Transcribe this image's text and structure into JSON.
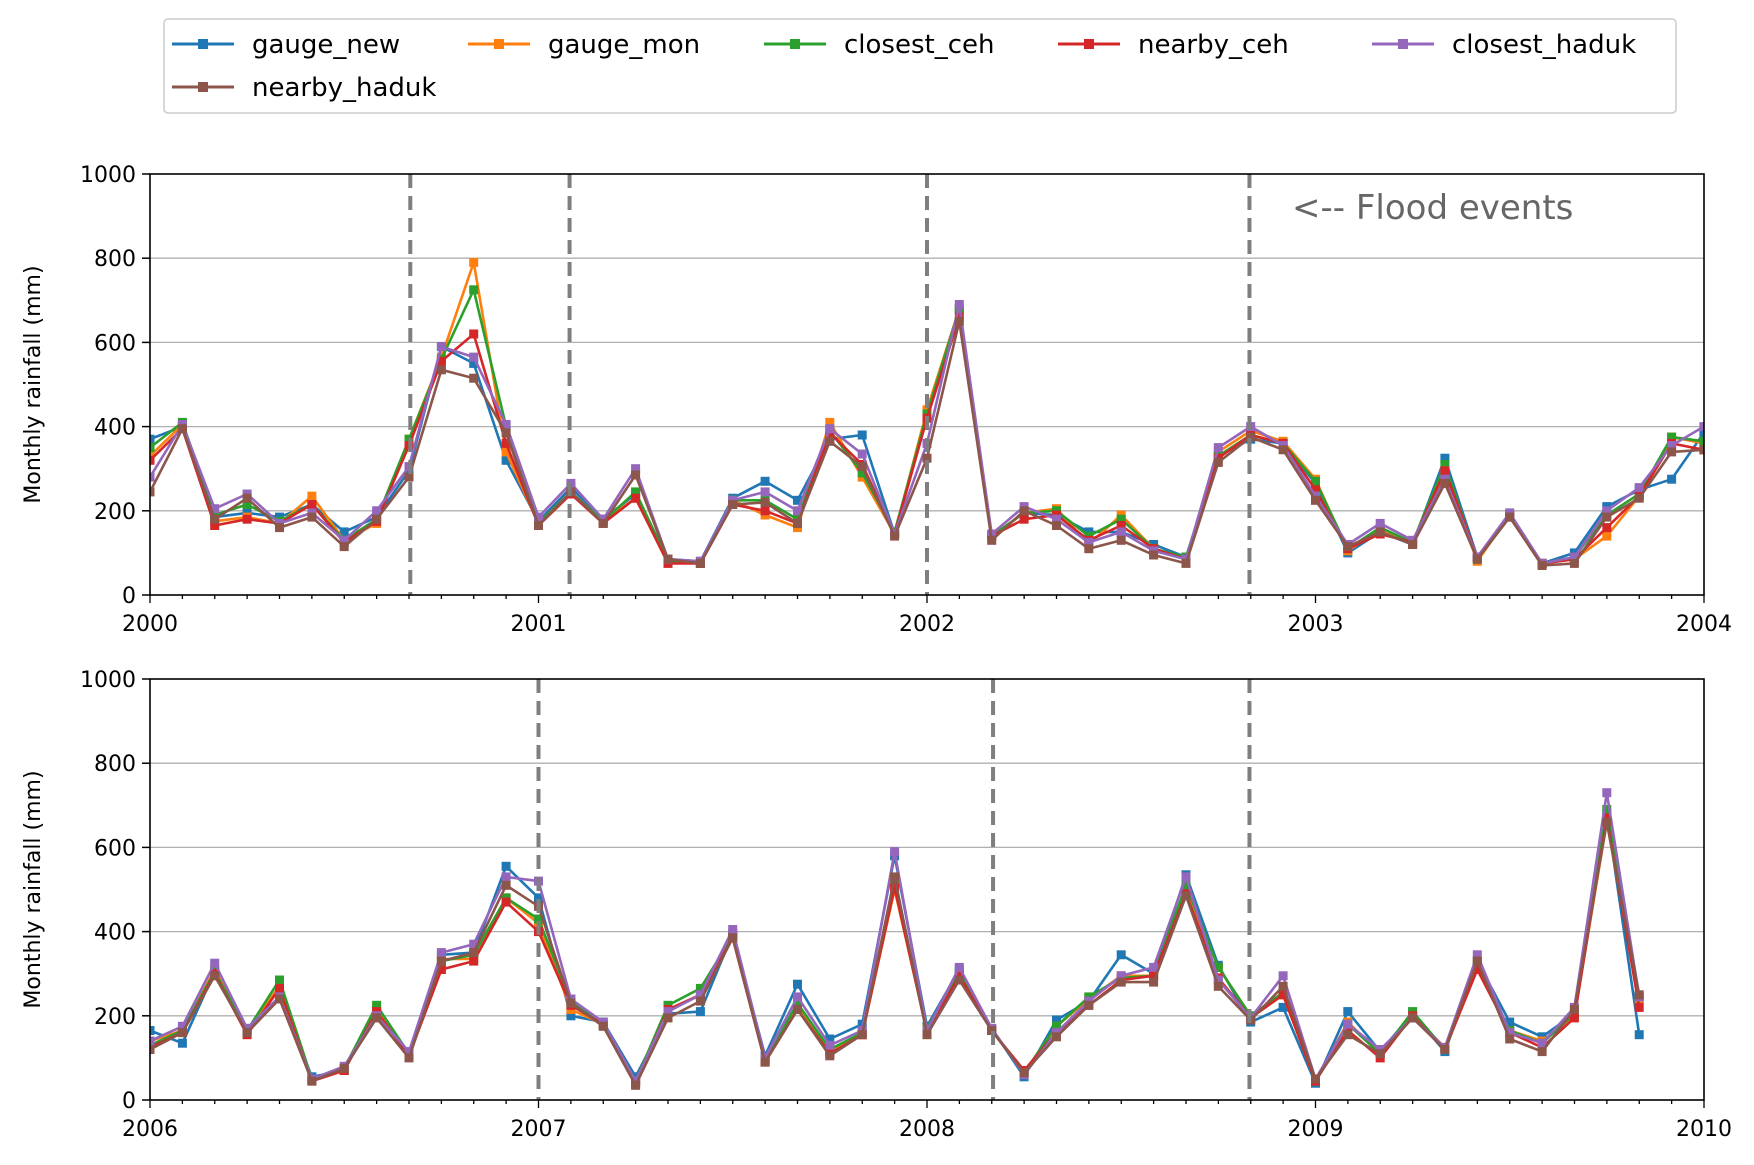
{
  "legend": {
    "placement": "top (above panels), outside",
    "entries": [
      {
        "name": "gauge_new",
        "color": "#1f77b4"
      },
      {
        "name": "gauge_mon",
        "color": "#ff7f0e"
      },
      {
        "name": "closest_ceh",
        "color": "#2ca02c"
      },
      {
        "name": "nearby_ceh",
        "color": "#d62728"
      },
      {
        "name": "closest_haduk",
        "color": "#9467bd"
      },
      {
        "name": "nearby_haduk",
        "color": "#8c564b"
      }
    ]
  },
  "chart_data": [
    {
      "type": "line",
      "ylabel": "Monthly rainfall (mm)",
      "ylim": [
        0,
        1000
      ],
      "yticks": [
        "0",
        "200",
        "400",
        "600",
        "800",
        "1000"
      ],
      "xlim": [
        2000,
        2004
      ],
      "xticks": [
        "2000",
        "2001",
        "2002",
        "2003",
        "2004"
      ],
      "grid": "horizontal",
      "annotation": "<-- Flood events",
      "flood_events": [
        2000.67,
        2001.08,
        2002.0,
        2002.83
      ],
      "x_start": 2000.0,
      "x_step": 0.08333,
      "series": [
        {
          "name": "gauge_new",
          "values": [
            370,
            400,
            185,
            195,
            185,
            215,
            150,
            185,
            295,
            590,
            550,
            320,
            175,
            255,
            180,
            240,
            85,
            80,
            230,
            270,
            225,
            370,
            380,
            145,
            430,
            680,
            140,
            195,
            190,
            150,
            150,
            120,
            90,
            330,
            370,
            360,
            265,
            100,
            150,
            120,
            325,
            90,
            190,
            75,
            100,
            210,
            250,
            275,
            385
          ]
        },
        {
          "name": "gauge_mon",
          "values": [
            330,
            405,
            175,
            185,
            170,
            235,
            130,
            170,
            370,
            565,
            790,
            340,
            170,
            245,
            175,
            230,
            80,
            75,
            225,
            190,
            160,
            410,
            280,
            145,
            440,
            680,
            140,
            195,
            205,
            120,
            190,
            110,
            85,
            340,
            390,
            365,
            275,
            105,
            155,
            120,
            290,
            80,
            190,
            75,
            85,
            140,
            235,
            375,
            360
          ]
        },
        {
          "name": "closest_ceh",
          "values": [
            350,
            410,
            190,
            215,
            175,
            215,
            130,
            180,
            370,
            560,
            725,
            400,
            170,
            245,
            175,
            245,
            80,
            75,
            225,
            225,
            180,
            390,
            290,
            150,
            430,
            680,
            140,
            195,
            200,
            140,
            180,
            110,
            90,
            330,
            380,
            360,
            270,
            110,
            160,
            125,
            310,
            85,
            185,
            75,
            90,
            190,
            240,
            375,
            365
          ]
        },
        {
          "name": "nearby_ceh",
          "values": [
            320,
            395,
            165,
            180,
            170,
            215,
            125,
            175,
            355,
            555,
            620,
            360,
            165,
            240,
            170,
            230,
            75,
            75,
            215,
            200,
            170,
            385,
            310,
            145,
            420,
            660,
            140,
            180,
            190,
            130,
            165,
            110,
            85,
            325,
            380,
            360,
            250,
            110,
            145,
            125,
            295,
            90,
            190,
            75,
            85,
            160,
            235,
            360,
            345
          ]
        },
        {
          "name": "closest_haduk",
          "values": [
            280,
            405,
            205,
            240,
            170,
            195,
            130,
            200,
            305,
            590,
            565,
            405,
            185,
            265,
            180,
            300,
            85,
            80,
            225,
            245,
            200,
            395,
            335,
            145,
            360,
            690,
            145,
            210,
            180,
            125,
            150,
            105,
            85,
            350,
            400,
            355,
            235,
            120,
            170,
            130,
            275,
            90,
            195,
            75,
            90,
            200,
            255,
            355,
            400
          ]
        },
        {
          "name": "nearby_haduk",
          "values": [
            245,
            395,
            180,
            230,
            160,
            185,
            115,
            180,
            280,
            535,
            515,
            385,
            165,
            245,
            170,
            285,
            85,
            75,
            215,
            220,
            170,
            365,
            305,
            140,
            325,
            650,
            130,
            200,
            165,
            110,
            130,
            95,
            75,
            315,
            375,
            345,
            225,
            115,
            150,
            120,
            265,
            85,
            185,
            70,
            75,
            185,
            230,
            340,
            345
          ]
        }
      ]
    },
    {
      "type": "line",
      "ylabel": "Monthly rainfall (mm)",
      "ylim": [
        0,
        1000
      ],
      "yticks": [
        "0",
        "200",
        "400",
        "600",
        "800",
        "1000"
      ],
      "xlim": [
        2006,
        2010
      ],
      "xticks": [
        "2006",
        "2007",
        "2008",
        "2009",
        "2010"
      ],
      "grid": "horizontal",
      "flood_events": [
        2007.0,
        2008.17,
        2008.83
      ],
      "x_start": 2006.0,
      "x_step": 0.08333,
      "series": [
        {
          "name": "gauge_new",
          "values": [
            165,
            135,
            305,
            170,
            245,
            55,
            70,
            215,
            110,
            345,
            350,
            555,
            480,
            200,
            185,
            55,
            205,
            210,
            395,
            105,
            275,
            145,
            180,
            580,
            175,
            310,
            170,
            55,
            190,
            235,
            345,
            300,
            535,
            320,
            185,
            220,
            40,
            210,
            115,
            205,
            115,
            330,
            185,
            150,
            205,
            680,
            155
          ]
        },
        {
          "name": "gauge_mon",
          "values": [
            140,
            165,
            310,
            165,
            270,
            50,
            70,
            220,
            110,
            335,
            335,
            480,
            420,
            215,
            180,
            45,
            215,
            250,
            395,
            95,
            225,
            115,
            155,
            500,
            165,
            295,
            165,
            65,
            175,
            240,
            295,
            295,
            500,
            315,
            200,
            250,
            45,
            185,
            110,
            200,
            125,
            320,
            165,
            140,
            200,
            660,
            240
          ]
        },
        {
          "name": "closest_ceh",
          "values": [
            130,
            165,
            305,
            165,
            285,
            50,
            75,
            225,
            110,
            330,
            345,
            480,
            430,
            235,
            180,
            45,
            225,
            265,
            390,
            95,
            230,
            120,
            160,
            515,
            170,
            305,
            165,
            65,
            175,
            245,
            290,
            295,
            510,
            315,
            200,
            255,
            45,
            180,
            110,
            210,
            120,
            320,
            165,
            135,
            205,
            690,
            245
          ]
        },
        {
          "name": "nearby_ceh",
          "values": [
            125,
            160,
            300,
            155,
            265,
            45,
            70,
            210,
            105,
            310,
            330,
            470,
            400,
            225,
            180,
            40,
            215,
            250,
            385,
            90,
            215,
            110,
            155,
            505,
            160,
            295,
            165,
            70,
            160,
            225,
            285,
            295,
            490,
            290,
            195,
            250,
            45,
            165,
            100,
            200,
            120,
            310,
            160,
            125,
            195,
            670,
            220
          ]
        },
        {
          "name": "closest_haduk",
          "values": [
            140,
            175,
            325,
            170,
            245,
            50,
            80,
            200,
            115,
            350,
            370,
            530,
            520,
            240,
            185,
            45,
            210,
            250,
            405,
            100,
            245,
            130,
            165,
            590,
            165,
            315,
            170,
            60,
            160,
            235,
            295,
            315,
            530,
            285,
            195,
            295,
            50,
            180,
            120,
            195,
            125,
            345,
            160,
            135,
            220,
            730,
            245
          ]
        },
        {
          "name": "nearby_haduk",
          "values": [
            120,
            160,
            295,
            160,
            240,
            45,
            75,
            195,
            100,
            330,
            350,
            510,
            460,
            230,
            175,
            35,
            195,
            235,
            385,
            90,
            215,
            105,
            155,
            530,
            155,
            285,
            165,
            65,
            150,
            225,
            280,
            280,
            485,
            270,
            190,
            270,
            50,
            155,
            110,
            195,
            120,
            330,
            145,
            115,
            215,
            660,
            250
          ]
        }
      ]
    }
  ]
}
